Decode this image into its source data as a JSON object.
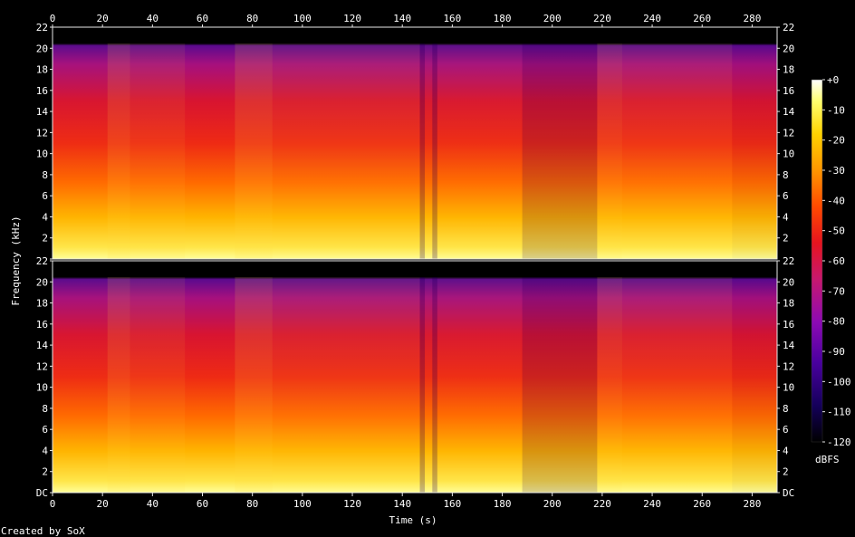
{
  "chart_data": {
    "type": "heatmap",
    "title": "",
    "xlabel": "Time (s)",
    "ylabel": "Frequency (kHz)",
    "xlim": [
      0,
      290
    ],
    "ylim": [
      0,
      22
    ],
    "x_ticks": [
      0,
      20,
      40,
      60,
      80,
      100,
      120,
      140,
      160,
      180,
      200,
      220,
      240,
      260,
      280
    ],
    "y_tick_values": [
      0,
      2,
      4,
      6,
      8,
      10,
      12,
      14,
      16,
      18,
      20,
      22
    ],
    "y_tick_labels": [
      "DC",
      "2",
      "4",
      "6",
      "8",
      "10",
      "12",
      "14",
      "16",
      "18",
      "20",
      "22"
    ],
    "channels": 2,
    "colorbar": {
      "label": "dBFS",
      "range": [
        -120,
        0
      ],
      "ticks": [
        0,
        -10,
        -20,
        -30,
        -40,
        -50,
        -60,
        -70,
        -80,
        -90,
        -100,
        -110,
        -120
      ],
      "tick_labels": [
        "+0",
        "-10",
        "-20",
        "-30",
        "-40",
        "-50",
        "-60",
        "-70",
        "-80",
        "-90",
        "-100",
        "-110",
        "-120"
      ]
    },
    "segments": [
      {
        "start": 0,
        "end": 22,
        "level": 0.62
      },
      {
        "start": 22,
        "end": 31,
        "level": 0.86
      },
      {
        "start": 31,
        "end": 53,
        "level": 0.74
      },
      {
        "start": 53,
        "end": 73,
        "level": 0.6
      },
      {
        "start": 73,
        "end": 88,
        "level": 0.86
      },
      {
        "start": 88,
        "end": 147,
        "level": 0.72
      },
      {
        "start": 147,
        "end": 149,
        "level": 0.3
      },
      {
        "start": 149,
        "end": 152,
        "level": 0.66
      },
      {
        "start": 152,
        "end": 154,
        "level": 0.3
      },
      {
        "start": 154,
        "end": 188,
        "level": 0.66
      },
      {
        "start": 188,
        "end": 218,
        "level": 0.4
      },
      {
        "start": 218,
        "end": 228,
        "level": 0.82
      },
      {
        "start": 228,
        "end": 272,
        "level": 0.72
      },
      {
        "start": 272,
        "end": 290,
        "level": 0.56
      }
    ]
  },
  "footer": {
    "credit": "Created by SoX"
  },
  "colors": {
    "background": "#000000",
    "axis": "#e8e8e8",
    "colormap": [
      "#000000",
      "#14005a",
      "#4a00a0",
      "#8c0ab4",
      "#c8186e",
      "#e6141e",
      "#ff4a00",
      "#ff9600",
      "#ffd200",
      "#ffff6e",
      "#ffffff"
    ]
  }
}
